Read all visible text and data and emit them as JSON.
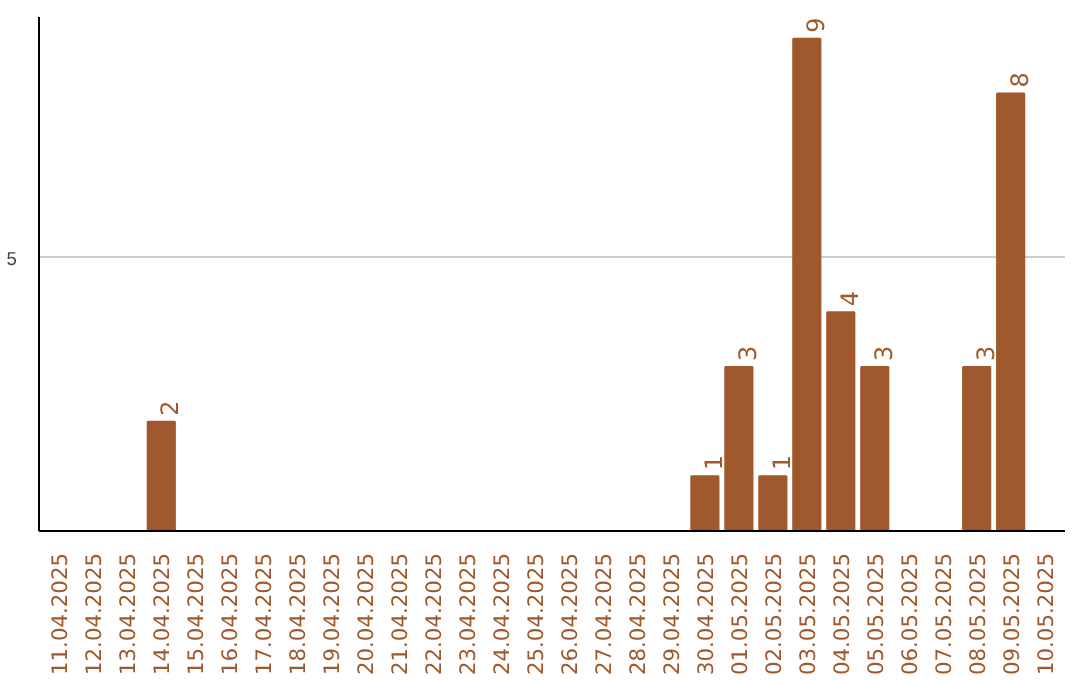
{
  "chart_data": {
    "type": "bar",
    "categories": [
      "11.04.2025",
      "12.04.2025",
      "13.04.2025",
      "14.04.2025",
      "15.04.2025",
      "16.04.2025",
      "17.04.2025",
      "18.04.2025",
      "19.04.2025",
      "20.04.2025",
      "21.04.2025",
      "22.04.2025",
      "23.04.2025",
      "24.04.2025",
      "25.04.2025",
      "26.04.2025",
      "27.04.2025",
      "28.04.2025",
      "29.04.2025",
      "30.04.2025",
      "01.05.2025",
      "02.05.2025",
      "03.05.2025",
      "04.05.2025",
      "05.05.2025",
      "06.05.2025",
      "07.05.2025",
      "08.05.2025",
      "09.05.2025",
      "10.05.2025"
    ],
    "values": [
      null,
      null,
      null,
      2,
      null,
      null,
      null,
      null,
      null,
      null,
      null,
      null,
      null,
      null,
      null,
      null,
      null,
      null,
      null,
      1,
      3,
      1,
      9,
      4,
      3,
      null,
      null,
      3,
      8,
      null
    ],
    "color": "#a0592c",
    "ylim": [
      0,
      9.4
    ],
    "yticks": [
      5
    ],
    "grid": "y",
    "data_labels": true
  }
}
